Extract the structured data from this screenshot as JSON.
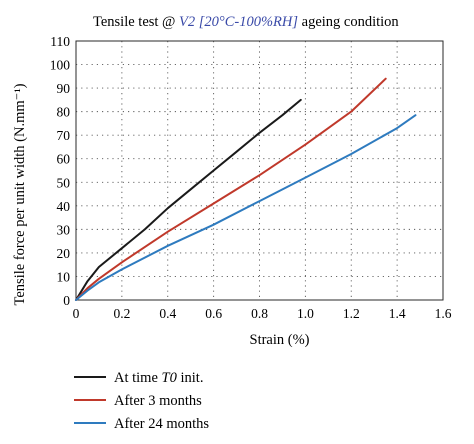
{
  "chart_data": {
    "type": "line",
    "title": {
      "prefix": "Tensile test @ ",
      "highlight": "V2 [20°C-100%RH]",
      "suffix": " ageing condition"
    },
    "xlabel": "Strain (%)",
    "ylabel": "Tensile force per unit width (N.mm⁻¹)",
    "xlim": [
      0,
      1.6
    ],
    "ylim": [
      0,
      110
    ],
    "xticks": [
      0,
      0.2,
      0.4,
      0.6,
      0.8,
      1.0,
      1.2,
      1.4,
      1.6
    ],
    "xtick_labels": [
      "0",
      "0.2",
      "0.4",
      "0.6",
      "0.8",
      "1.0",
      "1.2",
      "1.4",
      "1.6"
    ],
    "yticks": [
      0,
      10,
      20,
      30,
      40,
      50,
      60,
      70,
      80,
      90,
      100,
      110
    ],
    "ytick_labels": [
      "0",
      "10",
      "20",
      "30",
      "40",
      "50",
      "60",
      "70",
      "80",
      "90",
      "100",
      "110"
    ],
    "grid": "dotted",
    "legend_position": "below",
    "series": [
      {
        "name": "At time T0 init.",
        "color": "#1a1a1a",
        "x": [
          0,
          0.05,
          0.1,
          0.2,
          0.3,
          0.4,
          0.5,
          0.6,
          0.7,
          0.8,
          0.9,
          0.98
        ],
        "y": [
          0,
          8,
          14,
          22,
          30,
          39,
          47,
          55,
          63,
          71,
          78.5,
          85
        ]
      },
      {
        "name": "After 3 months",
        "color": "#c0392b",
        "x": [
          0,
          0.05,
          0.1,
          0.2,
          0.4,
          0.6,
          0.8,
          1.0,
          1.2,
          1.35
        ],
        "y": [
          0,
          5,
          9,
          16,
          29,
          41,
          53,
          66,
          80,
          94
        ]
      },
      {
        "name": "After 24 months",
        "color": "#2e7bbf",
        "x": [
          0,
          0.05,
          0.1,
          0.2,
          0.4,
          0.6,
          0.8,
          1.0,
          1.2,
          1.4,
          1.48
        ],
        "y": [
          0,
          4,
          7.5,
          13,
          23,
          32,
          42,
          52,
          62,
          73,
          78.5
        ]
      }
    ]
  },
  "legend": {
    "items": [
      {
        "prefix": "At time ",
        "italic": "T0",
        "suffix": " init."
      },
      {
        "prefix": "After 3 months",
        "italic": "",
        "suffix": ""
      },
      {
        "prefix": "After 24 months",
        "italic": "",
        "suffix": ""
      }
    ]
  }
}
